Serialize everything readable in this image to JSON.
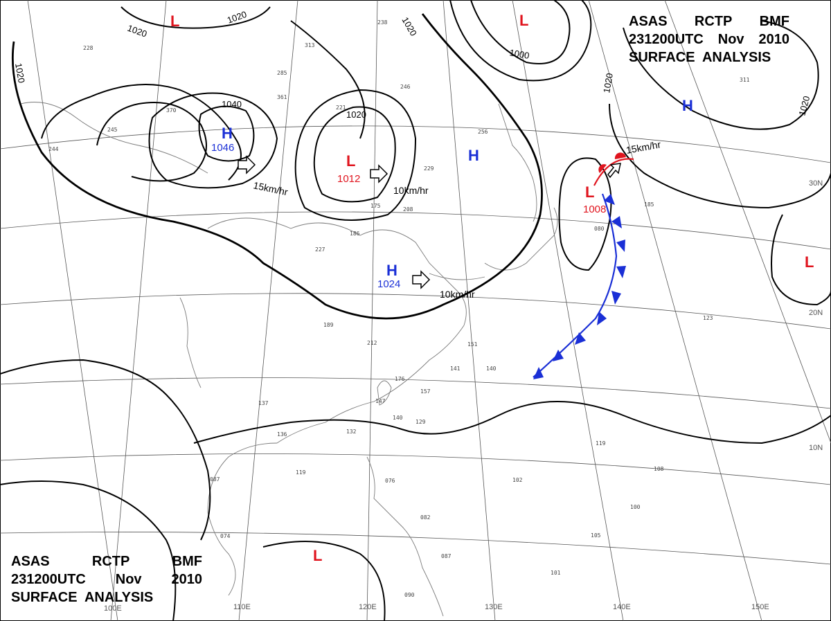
{
  "header_top": {
    "line1": [
      "ASAS",
      "RCTP",
      "BMF"
    ],
    "line2": [
      "231200UTC",
      "Nov",
      "2010"
    ],
    "line3": "SURFACE  ANALYSIS"
  },
  "header_bottom": {
    "line1": [
      "ASAS",
      "RCTP",
      "BMF"
    ],
    "line2": [
      "231200UTC",
      "Nov",
      "2010"
    ],
    "line3": "SURFACE  ANALYSIS"
  },
  "isobar_labels": [
    "1020",
    "1020",
    "1020",
    "1020",
    "1000",
    "1020",
    "1040",
    "1020",
    "1020"
  ],
  "pressure_centers": [
    {
      "type": "H",
      "value": "1046",
      "color": "#1a2fd6"
    },
    {
      "type": "L",
      "value": "1012",
      "color": "#e0141e"
    },
    {
      "type": "H",
      "value": "1024",
      "color": "#1a2fd6"
    },
    {
      "type": "L",
      "value": "1008",
      "color": "#e0141e"
    },
    {
      "type": "H",
      "value": "",
      "color": "#1a2fd6"
    },
    {
      "type": "H",
      "value": "",
      "color": "#1a2fd6"
    },
    {
      "type": "L",
      "value": "",
      "color": "#e0141e"
    },
    {
      "type": "L",
      "value": "",
      "color": "#e0141e"
    },
    {
      "type": "L",
      "value": "",
      "color": "#e0141e"
    },
    {
      "type": "L",
      "value": "",
      "color": "#e0141e"
    }
  ],
  "movement_labels": [
    "15km/hr",
    "10km/hr",
    "10km/hr",
    "15km/hr"
  ],
  "longitude_labels": [
    "110E",
    "120E",
    "130E",
    "140E",
    "150E",
    "100E"
  ],
  "latitude_labels": [
    "30N",
    "20N",
    "10N"
  ],
  "station_samples": [
    "228",
    "313",
    "285",
    "361",
    "370",
    "245",
    "244",
    "238",
    "246",
    "221",
    "256",
    "229",
    "175",
    "208",
    "186",
    "227",
    "189",
    "212",
    "176",
    "147",
    "140",
    "157",
    "129",
    "151",
    "141",
    "140",
    "137",
    "136",
    "132",
    "119",
    "087",
    "074",
    "076",
    "082",
    "087",
    "102",
    "108",
    "119",
    "100",
    "105",
    "101",
    "090",
    "123",
    "311",
    "185",
    "080"
  ],
  "colors": {
    "isobar": "#000000",
    "high": "#1a2fd6",
    "low": "#e0141e",
    "cold_front": "#1a2fd6",
    "warm_front": "#e0141e",
    "grid": "#555555",
    "coast": "#7a7a7a"
  }
}
